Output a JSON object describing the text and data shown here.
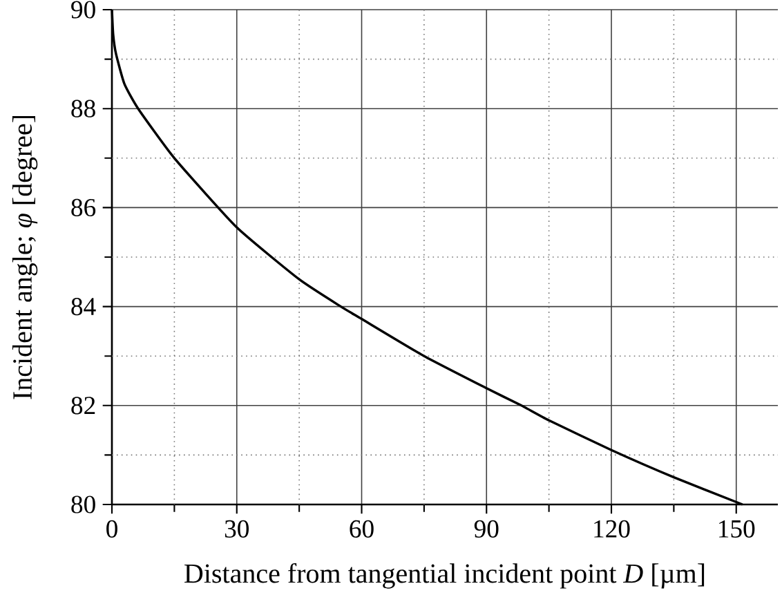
{
  "chart_data": {
    "type": "line",
    "xlabel": "Distance from tangential incident point *D* [µm]",
    "ylabel": "Incident angle; *φ* [degree]",
    "x": [
      0,
      0.3,
      1,
      3,
      6.3,
      15,
      30,
      45,
      55,
      60,
      75,
      90,
      98.4,
      105,
      120,
      135,
      151.5
    ],
    "series": [
      {
        "color": "#000000",
        "values": [
          90,
          89.5,
          89.1,
          88.5,
          88,
          87,
          85.6,
          84.55,
          84,
          83.75,
          83,
          82.35,
          82,
          81.7,
          81.1,
          80.55,
          80
        ]
      }
    ],
    "xlim": [
      0,
      160
    ],
    "ylim": [
      80,
      90
    ],
    "xticks": [
      0,
      {
        "value": 15,
        "label": null
      },
      30,
      {
        "value": 45,
        "label": null
      },
      60,
      {
        "value": 75,
        "label": null
      },
      90,
      {
        "value": 105,
        "label": null
      },
      120,
      {
        "value": 135,
        "label": null
      },
      150
    ],
    "yticks": [
      80,
      {
        "value": 81,
        "label": null
      },
      82,
      {
        "value": 83,
        "label": null
      },
      84,
      {
        "value": 85,
        "label": null
      },
      86,
      {
        "value": 87,
        "label": null
      },
      88,
      {
        "value": 89,
        "label": null
      },
      90
    ],
    "grid": true,
    "marker": "none",
    "line_style": "solid"
  }
}
